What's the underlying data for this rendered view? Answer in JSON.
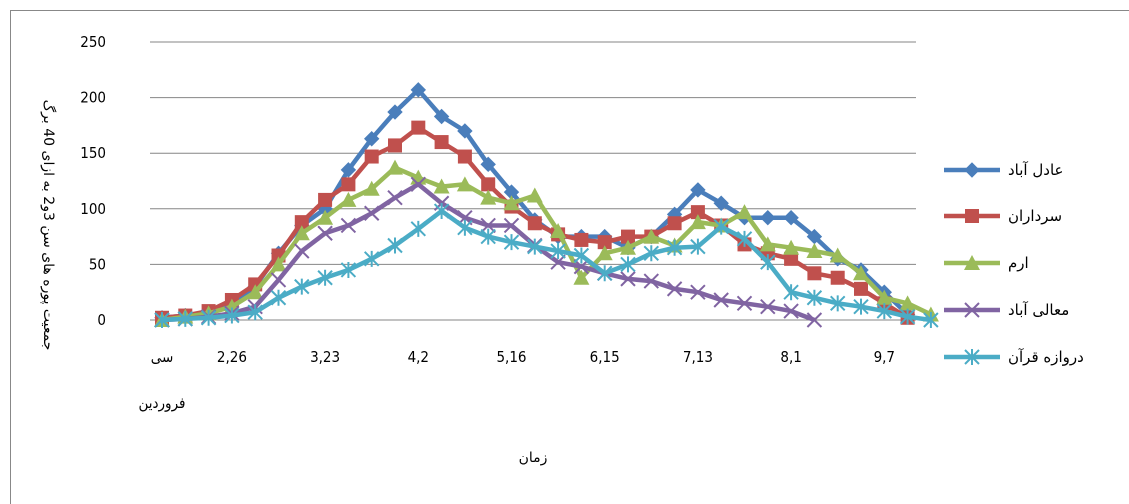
{
  "chart_data": {
    "type": "line",
    "xlabel": "زمان",
    "ylabel": "جمعیت پوره های سن 3و2 به ازای 40 برگ",
    "ylim": [
      0,
      250
    ],
    "yticks": [
      0,
      50,
      100,
      150,
      200,
      250
    ],
    "grid": true,
    "legend_position": "right",
    "x_tick_labels": [
      {
        "index": 0,
        "lines": [
          "سی",
          "فروردین"
        ]
      },
      {
        "index": 3,
        "lines": [
          "2,26"
        ]
      },
      {
        "index": 7,
        "lines": [
          "3,23"
        ]
      },
      {
        "index": 11,
        "lines": [
          "4,2"
        ]
      },
      {
        "index": 15,
        "lines": [
          "5,16"
        ]
      },
      {
        "index": 19,
        "lines": [
          "6,15"
        ]
      },
      {
        "index": 23,
        "lines": [
          "7,13"
        ]
      },
      {
        "index": 27,
        "lines": [
          "8,1"
        ]
      },
      {
        "index": 31,
        "lines": [
          "9,7"
        ]
      }
    ],
    "series": [
      {
        "name": "عادل آباد",
        "color": "#4a7ebb",
        "marker": "diamond",
        "values": [
          2,
          4,
          7,
          15,
          30,
          60,
          85,
          100,
          135,
          163,
          187,
          207,
          183,
          170,
          140,
          115,
          90,
          75,
          75,
          75,
          65,
          75,
          95,
          117,
          105,
          92,
          92,
          92,
          75,
          55,
          45,
          25,
          5
        ]
      },
      {
        "name": "سرداران",
        "color": "#c0504d",
        "marker": "square",
        "values": [
          2,
          4,
          8,
          18,
          32,
          58,
          88,
          108,
          122,
          147,
          157,
          173,
          160,
          147,
          122,
          102,
          87,
          77,
          72,
          70,
          75,
          75,
          87,
          97,
          85,
          68,
          60,
          55,
          42,
          38,
          28,
          15,
          2
        ]
      },
      {
        "name": "ارم",
        "color": "#9bbb59",
        "marker": "triangle",
        "values": [
          0,
          3,
          6,
          12,
          25,
          50,
          78,
          92,
          108,
          118,
          137,
          128,
          120,
          122,
          110,
          105,
          112,
          80,
          38,
          60,
          65,
          75,
          67,
          88,
          85,
          97,
          68,
          65,
          62,
          58,
          42,
          20,
          15,
          5
        ]
      },
      {
        "name": "معالی آباد",
        "color": "#8064a2",
        "marker": "x",
        "values": [
          0,
          1,
          3,
          6,
          12,
          36,
          62,
          78,
          85,
          96,
          110,
          122,
          105,
          92,
          85,
          85,
          67,
          52,
          48,
          42,
          37,
          35,
          28,
          25,
          18,
          15,
          12,
          8,
          0
        ]
      },
      {
        "name": "دروازه قرآن",
        "color": "#4bacc6",
        "marker": "star",
        "values": [
          0,
          1,
          2,
          4,
          7,
          20,
          30,
          38,
          45,
          55,
          67,
          82,
          98,
          83,
          75,
          70,
          66,
          62,
          58,
          42,
          50,
          60,
          65,
          66,
          84,
          73,
          52,
          25,
          20,
          15,
          12,
          8,
          3,
          0
        ]
      }
    ]
  }
}
